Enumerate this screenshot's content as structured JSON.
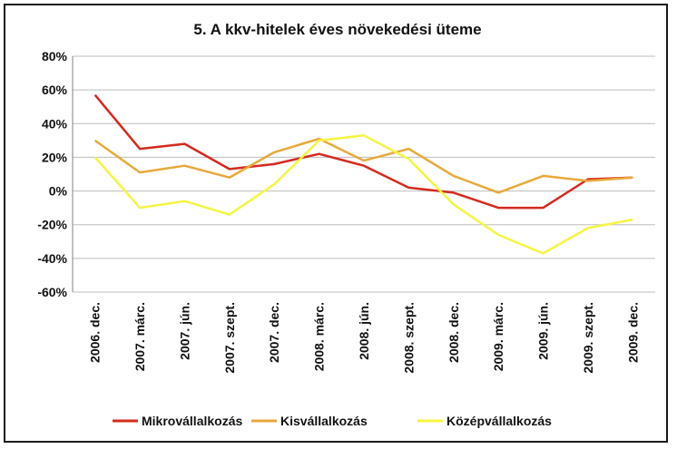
{
  "chart_data": {
    "type": "line",
    "title": "5. A kkv-hitelek éves növekedési üteme",
    "xlabel": "",
    "ylabel": "",
    "ylim": [
      -0.6,
      0.8
    ],
    "yticks": [
      -0.6,
      -0.4,
      -0.2,
      0,
      0.2,
      0.4,
      0.6,
      0.8
    ],
    "ytick_labels": [
      "-60%",
      "-40%",
      "-20%",
      "0%",
      "20%",
      "40%",
      "60%",
      "80%"
    ],
    "grid": true,
    "legend": "bottom",
    "categories": [
      "2006. dec.",
      "2007. márc.",
      "2007. jún.",
      "2007. szept.",
      "2007. dec.",
      "2008. márc.",
      "2008. jún.",
      "2008. szept.",
      "2008. dec.",
      "2009. márc.",
      "2009. jún.",
      "2009. szept.",
      "2009. dec."
    ],
    "series": [
      {
        "name": "Mikrovállalkozás",
        "color": "#d42a1e",
        "values": [
          0.57,
          0.25,
          0.28,
          0.13,
          0.16,
          0.22,
          0.15,
          0.02,
          -0.01,
          -0.1,
          -0.1,
          0.07,
          0.08
        ]
      },
      {
        "name": "Kisvállalkozás",
        "color": "#e8a93a",
        "values": [
          0.3,
          0.11,
          0.15,
          0.08,
          0.23,
          0.31,
          0.18,
          0.25,
          0.09,
          -0.01,
          0.09,
          0.06,
          0.08
        ]
      },
      {
        "name": "Középvállalkozás",
        "color": "#f5f542",
        "values": [
          0.2,
          -0.1,
          -0.06,
          -0.14,
          0.04,
          0.3,
          0.33,
          0.19,
          -0.08,
          -0.26,
          -0.37,
          -0.22,
          -0.17
        ]
      }
    ]
  }
}
